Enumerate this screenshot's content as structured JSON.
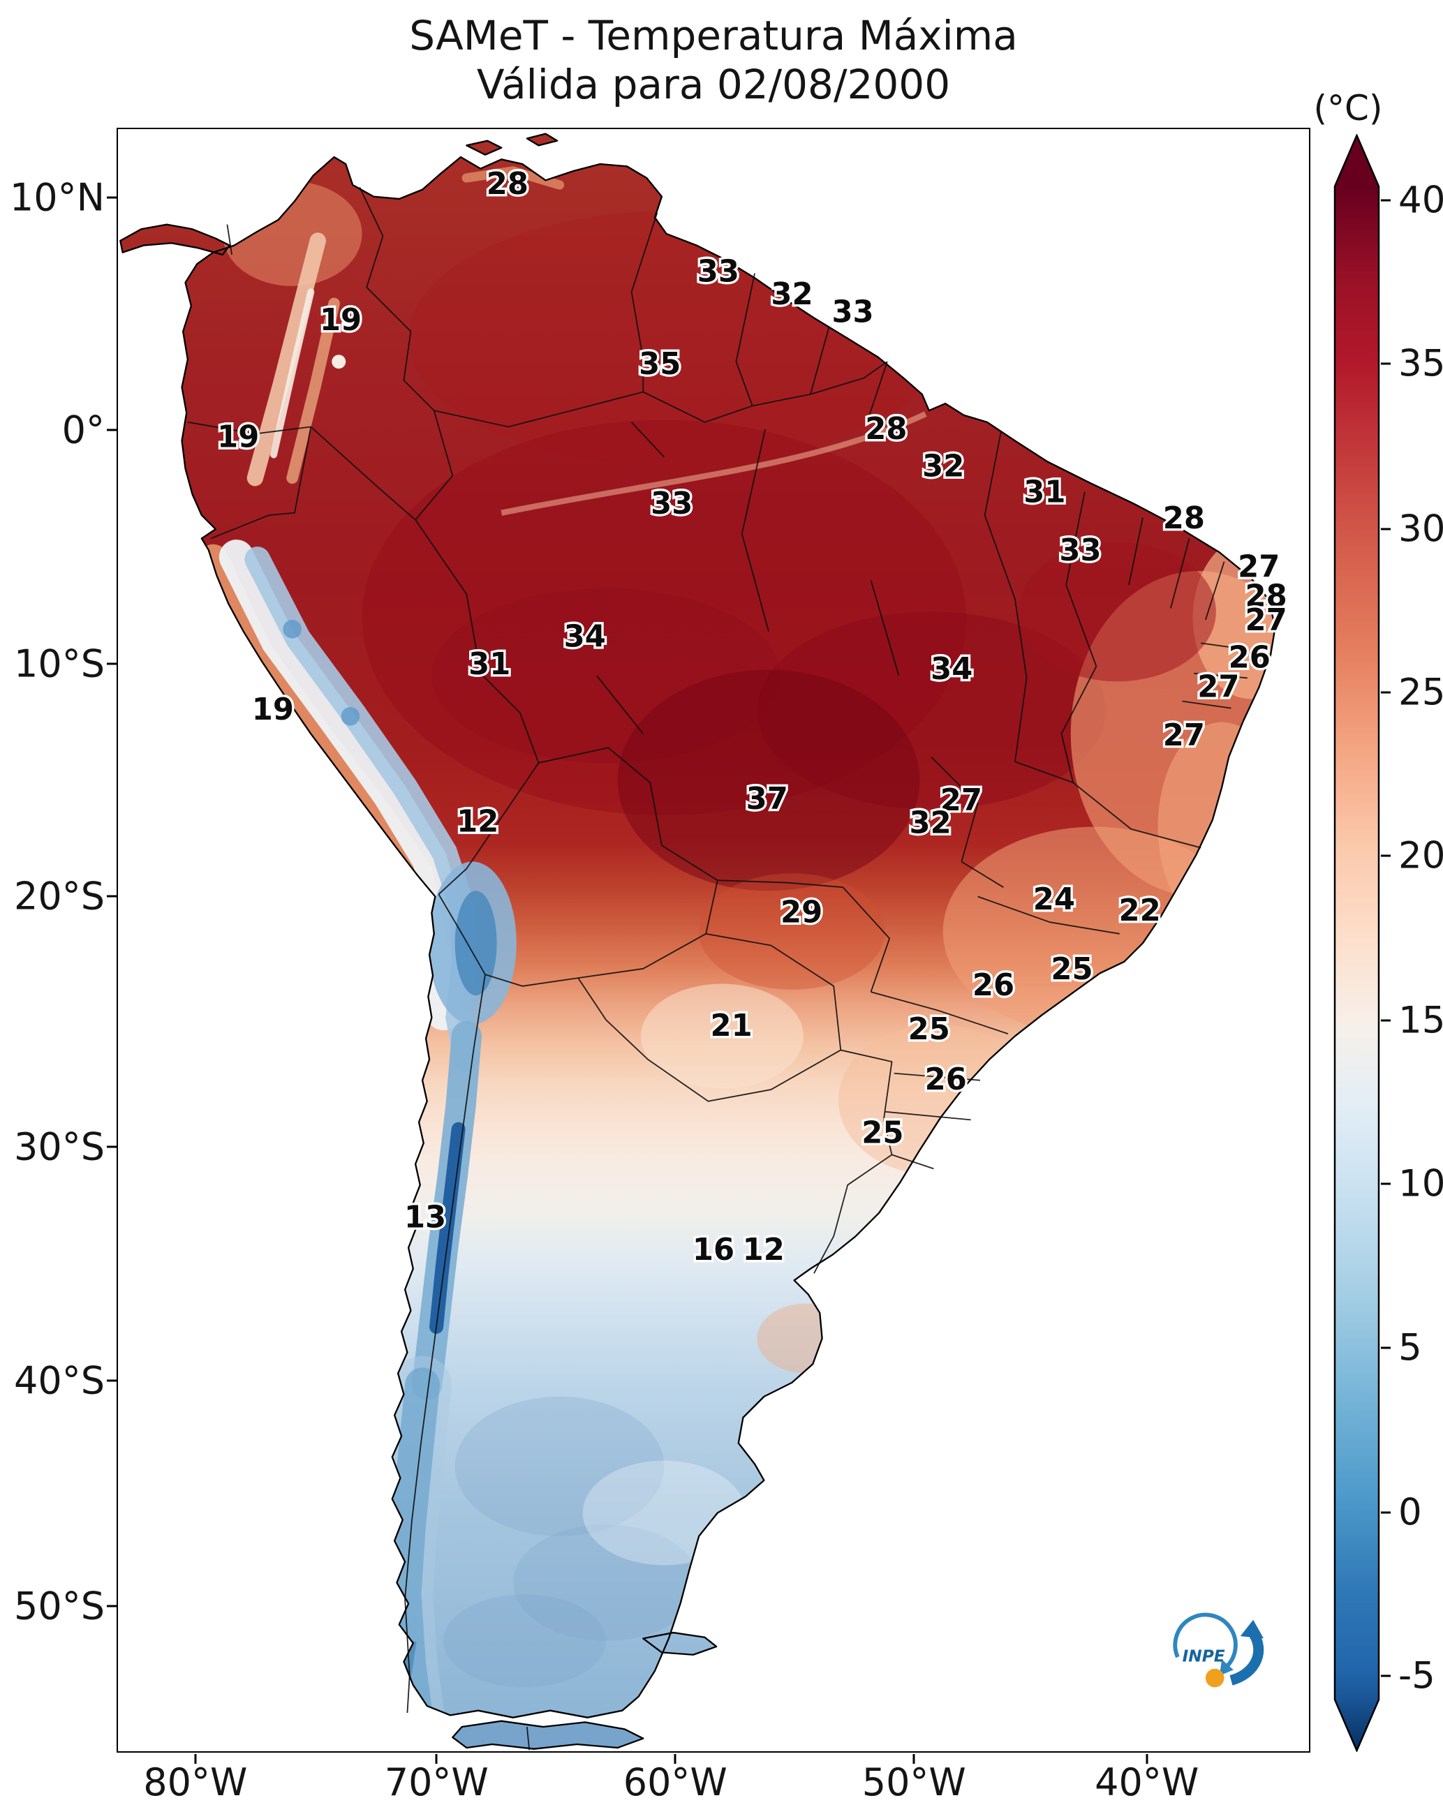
{
  "title": {
    "line1": "SAMeT - Temperatura Máxima",
    "line2": "Válida para 02/08/2000"
  },
  "colorbar": {
    "unit_label": "(°C)",
    "hot_color": "#67001f",
    "cold_color": "#053061",
    "ticks": [
      {
        "label": "40",
        "f": 0.041
      },
      {
        "label": "35",
        "f": 0.142
      },
      {
        "label": "30",
        "f": 0.244
      },
      {
        "label": "25",
        "f": 0.345
      },
      {
        "label": "20",
        "f": 0.446
      },
      {
        "label": "15",
        "f": 0.548
      },
      {
        "label": "10",
        "f": 0.649
      },
      {
        "label": "5",
        "f": 0.75
      },
      {
        "label": "0",
        "f": 0.852
      },
      {
        "label": "-5",
        "f": 0.953
      }
    ]
  },
  "axes": {
    "lat": [
      {
        "label": "10°N",
        "f": 0.043
      },
      {
        "label": "0°",
        "f": 0.186
      },
      {
        "label": "10°S",
        "f": 0.33
      },
      {
        "label": "20°S",
        "f": 0.473
      },
      {
        "label": "30°S",
        "f": 0.627
      },
      {
        "label": "40°S",
        "f": 0.771
      },
      {
        "label": "50°S",
        "f": 0.91
      }
    ],
    "lon": [
      {
        "label": "80°W",
        "f": 0.066
      },
      {
        "label": "70°W",
        "f": 0.268
      },
      {
        "label": "60°W",
        "f": 0.468
      },
      {
        "label": "50°W",
        "f": 0.668
      },
      {
        "label": "40°W",
        "f": 0.863
      }
    ]
  },
  "logo": {
    "name": "INPE"
  },
  "chart_data": {
    "type": "heatmap",
    "title": "SAMeT - Temperatura Máxima",
    "subtitle": "Válida para 02/08/2000",
    "valid_date": "02/08/2000",
    "variable": "Temperatura Máxima",
    "units": "°C",
    "region": "South America",
    "colormap": "red-white-blue diverging (RdBu_r style)",
    "colorbar_ticks": [
      40,
      35,
      30,
      25,
      20,
      15,
      10,
      5,
      0,
      -5
    ],
    "x_tick_labels": [
      "80°W",
      "70°W",
      "60°W",
      "50°W",
      "40°W"
    ],
    "y_tick_labels": [
      "10°N",
      "0°",
      "10°S",
      "20°S",
      "30°S",
      "40°S",
      "50°S"
    ],
    "legend_position": "right vertical colorbar with pointed extension arrows",
    "point_labels": [
      {
        "value": "28",
        "fx": 0.327,
        "fy": 0.034
      },
      {
        "value": "33",
        "fx": 0.504,
        "fy": 0.088
      },
      {
        "value": "32",
        "fx": 0.566,
        "fy": 0.102
      },
      {
        "value": "33",
        "fx": 0.617,
        "fy": 0.113
      },
      {
        "value": "19",
        "fx": 0.187,
        "fy": 0.118
      },
      {
        "value": "35",
        "fx": 0.455,
        "fy": 0.145
      },
      {
        "value": "19",
        "fx": 0.101,
        "fy": 0.19
      },
      {
        "value": "28",
        "fx": 0.645,
        "fy": 0.185
      },
      {
        "value": "32",
        "fx": 0.693,
        "fy": 0.208
      },
      {
        "value": "31",
        "fx": 0.778,
        "fy": 0.224
      },
      {
        "value": "33",
        "fx": 0.465,
        "fy": 0.231
      },
      {
        "value": "28",
        "fx": 0.895,
        "fy": 0.24
      },
      {
        "value": "33",
        "fx": 0.808,
        "fy": 0.26
      },
      {
        "value": "27",
        "fx": 0.958,
        "fy": 0.27
      },
      {
        "value": "28",
        "fx": 0.964,
        "fy": 0.288
      },
      {
        "value": "27",
        "fx": 0.964,
        "fy": 0.303
      },
      {
        "value": "34",
        "fx": 0.392,
        "fy": 0.313
      },
      {
        "value": "26",
        "fx": 0.95,
        "fy": 0.326
      },
      {
        "value": "31",
        "fx": 0.312,
        "fy": 0.33
      },
      {
        "value": "34",
        "fx": 0.7,
        "fy": 0.333
      },
      {
        "value": "27",
        "fx": 0.924,
        "fy": 0.344
      },
      {
        "value": "19",
        "fx": 0.13,
        "fy": 0.358
      },
      {
        "value": "27",
        "fx": 0.895,
        "fy": 0.374
      },
      {
        "value": "37",
        "fx": 0.545,
        "fy": 0.413
      },
      {
        "value": "27",
        "fx": 0.708,
        "fy": 0.414
      },
      {
        "value": "12",
        "fx": 0.302,
        "fy": 0.427
      },
      {
        "value": "32",
        "fx": 0.682,
        "fy": 0.428
      },
      {
        "value": "24",
        "fx": 0.786,
        "fy": 0.475
      },
      {
        "value": "29",
        "fx": 0.574,
        "fy": 0.483
      },
      {
        "value": "22",
        "fx": 0.858,
        "fy": 0.482
      },
      {
        "value": "25",
        "fx": 0.801,
        "fy": 0.518
      },
      {
        "value": "26",
        "fx": 0.735,
        "fy": 0.528
      },
      {
        "value": "21",
        "fx": 0.515,
        "fy": 0.553
      },
      {
        "value": "25",
        "fx": 0.681,
        "fy": 0.555
      },
      {
        "value": "26",
        "fx": 0.695,
        "fy": 0.586
      },
      {
        "value": "25",
        "fx": 0.642,
        "fy": 0.619
      },
      {
        "value": "13",
        "fx": 0.258,
        "fy": 0.671
      },
      {
        "value": "16",
        "fx": 0.5,
        "fy": 0.691
      },
      {
        "value": "12",
        "fx": 0.542,
        "fy": 0.691
      }
    ]
  }
}
